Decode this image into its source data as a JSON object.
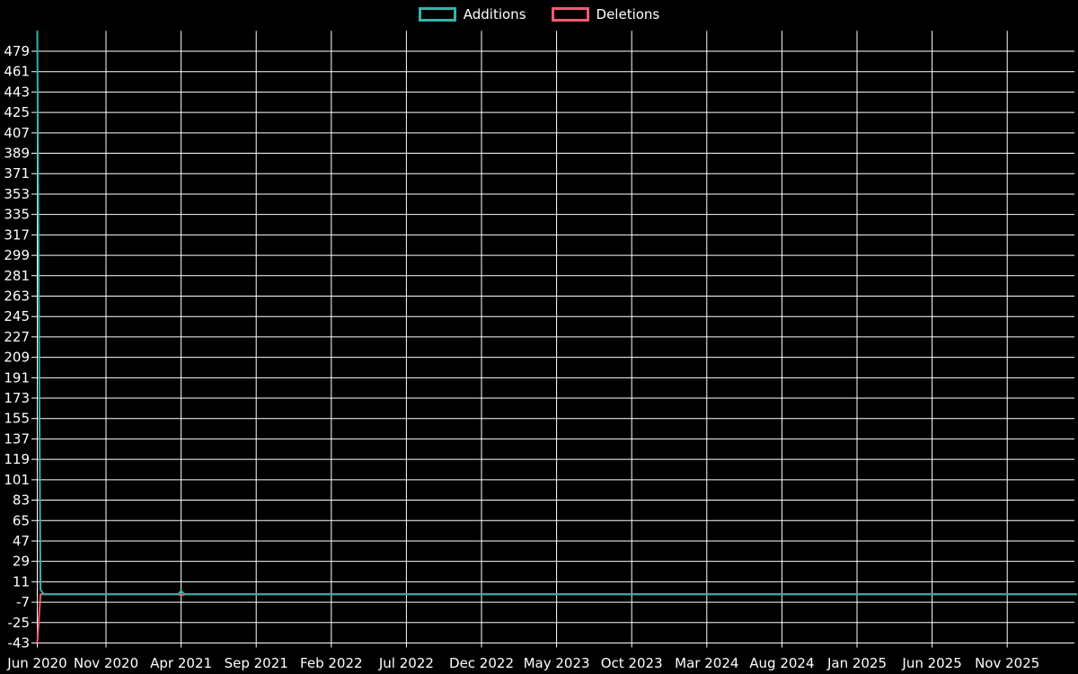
{
  "chart_data": {
    "type": "line",
    "title": "",
    "xlabel": "",
    "ylabel": "",
    "legend_position": "top",
    "grid": true,
    "background_color": "#000000",
    "grid_color": "#ffffff",
    "text_color": "#ffffff",
    "ylim": [
      -43,
      497
    ],
    "y_tick_step": 18,
    "y_tick_labels": [
      479,
      461,
      443,
      425,
      407,
      389,
      371,
      353,
      335,
      317,
      299,
      281,
      263,
      245,
      227,
      209,
      191,
      173,
      155,
      137,
      119,
      101,
      83,
      65,
      47,
      29,
      11,
      -7,
      -25,
      -43
    ],
    "x_tick_labels": [
      "Jun 2020",
      "Nov 2020",
      "Apr 2021",
      "Sep 2021",
      "Feb 2022",
      "Jul 2022",
      "Dec 2022",
      "May 2023",
      "Oct 2023",
      "Mar 2024",
      "Aug 2024",
      "Jan 2025",
      "Jun 2025",
      "Nov 2025"
    ],
    "series": [
      {
        "name": "Additions",
        "color": "#35b2ac",
        "points": [
          [
            "2020-06-01",
            497
          ],
          [
            "2020-06-08",
            4
          ],
          [
            "2020-06-15",
            0
          ],
          [
            "2021-03-25",
            0
          ],
          [
            "2021-04-01",
            3
          ],
          [
            "2021-04-08",
            0
          ],
          [
            "2026-02-15",
            0
          ]
        ]
      },
      {
        "name": "Deletions",
        "color": "#f25b72",
        "points": [
          [
            "2020-06-01",
            -43
          ],
          [
            "2020-06-08",
            0
          ],
          [
            "2021-03-25",
            0
          ],
          [
            "2021-04-01",
            -1
          ],
          [
            "2021-04-08",
            0
          ],
          [
            "2026-02-15",
            0
          ]
        ]
      }
    ]
  }
}
